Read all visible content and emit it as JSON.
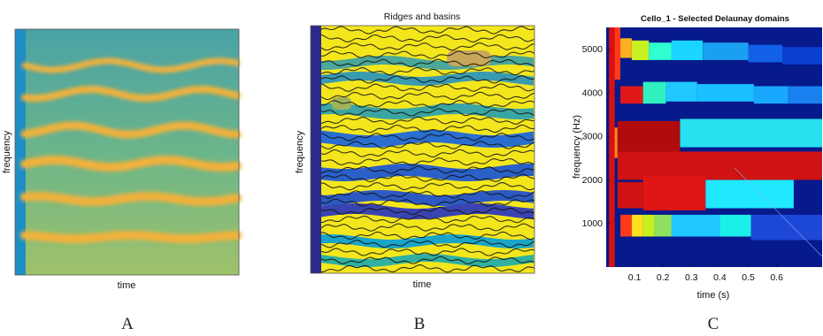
{
  "panels": [
    {
      "id": "A",
      "title": "",
      "xlabel": "time",
      "ylabel": "frequency",
      "caption": "A"
    },
    {
      "id": "B",
      "title": "Ridges and basins",
      "xlabel": "time",
      "ylabel": "frequency",
      "caption": "B"
    },
    {
      "id": "C",
      "title": "Cello_1 - Selected Delaunay domains",
      "xlabel": "time (s)",
      "ylabel": "frequency (Hz)",
      "caption": "C",
      "xticks": [
        "0.1",
        "0.2",
        "0.3",
        "0.4",
        "0.5",
        "0.6"
      ],
      "yticks": [
        "1000",
        "2000",
        "3000",
        "4000",
        "5000"
      ]
    }
  ],
  "colors": {
    "spectrogram_bg": "#5fae8c",
    "harmonic": "#f2b13a",
    "onset_strip": "#1e8fc4",
    "ridge_yellow": "#f4e61c",
    "deep_blue": "#2a2a8a",
    "domain_red": "#c81414",
    "domain_cyan": "#27e0f0",
    "domain_blue": "#1d47d6",
    "domain_navy": "#061a8c"
  }
}
